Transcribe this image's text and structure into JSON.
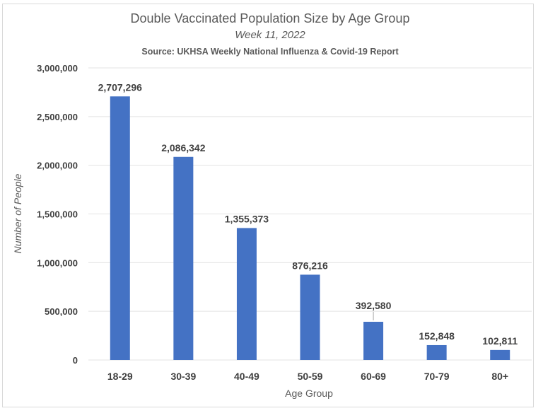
{
  "chart_data": {
    "type": "bar",
    "title": "Double Vaccinated Population Size by Age Group",
    "subtitle": "Week 11, 2022",
    "source": "Source: UKHSA Weekly National Influenza & Covid-19 Report",
    "xlabel": "Age Group",
    "ylabel": "Number of People",
    "ylim": [
      0,
      3000000
    ],
    "yticks": [
      0,
      500000,
      1000000,
      1500000,
      2000000,
      2500000,
      3000000
    ],
    "ytick_labels": [
      "0",
      "500,000",
      "1,000,000",
      "1,500,000",
      "2,000,000",
      "2,500,000",
      "3,000,000"
    ],
    "grid": true,
    "categories": [
      "18-29",
      "30-39",
      "40-49",
      "50-59",
      "60-69",
      "70-79",
      "80+"
    ],
    "values": [
      2707296,
      2086342,
      1355373,
      876216,
      392580,
      152848,
      102811
    ],
    "data_labels": [
      "2,707,296",
      "2,086,342",
      "1,355,373",
      "876,216",
      "392,580",
      "152,848",
      "102,811"
    ],
    "bar_color": "#4472C4"
  }
}
